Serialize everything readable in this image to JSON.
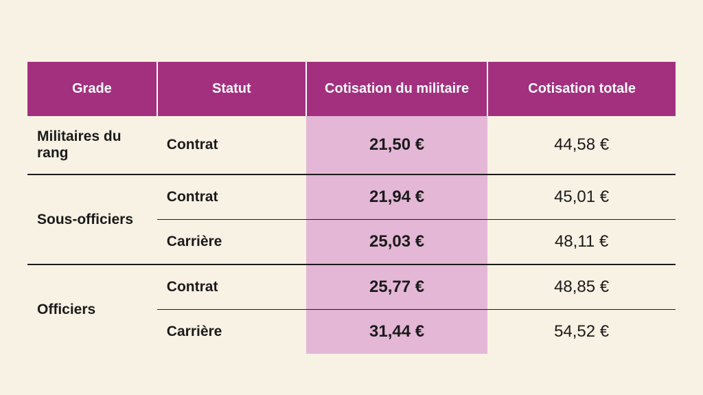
{
  "type": "table",
  "background_color": "#f8f2e4",
  "header_bg": "#a3307f",
  "header_fg": "#ffffff",
  "highlight_bg": "#e4b7d6",
  "rule_color": "#1a1a1a",
  "text_color": "#1a1a1a",
  "header_fontsize": 20,
  "body_fontsize": 21,
  "value_fontsize": 24,
  "columns": [
    "Grade",
    "Statut",
    "Cotisation du militaire",
    "Cotisation totale"
  ],
  "column_widths_pct": [
    20,
    23,
    28,
    29
  ],
  "column_align": [
    "left",
    "left",
    "center",
    "center"
  ],
  "column_bold": [
    true,
    true,
    true,
    false
  ],
  "groups": [
    {
      "grade": "Militaires du rang",
      "rows": [
        {
          "statut": "Contrat",
          "militaire": "21,50 €",
          "totale": "44,58 €"
        }
      ]
    },
    {
      "grade": "Sous-officiers",
      "rows": [
        {
          "statut": "Contrat",
          "militaire": "21,94 €",
          "totale": "45,01 €"
        },
        {
          "statut": "Carrière",
          "militaire": "25,03 €",
          "totale": "48,11 €"
        }
      ]
    },
    {
      "grade": "Officiers",
      "rows": [
        {
          "statut": "Contrat",
          "militaire": "25,77 €",
          "totale": "48,85 €"
        },
        {
          "statut": "Carrière",
          "militaire": "31,44 €",
          "totale": "54,52 €"
        }
      ]
    }
  ]
}
